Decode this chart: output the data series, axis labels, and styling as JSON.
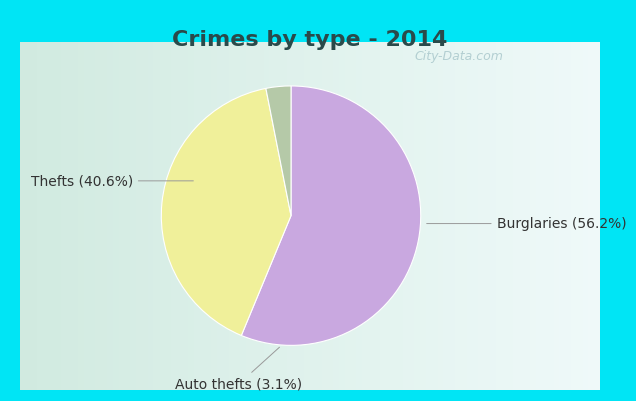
{
  "title": "Crimes by type - 2014",
  "slices": [
    56.2,
    40.6,
    3.1
  ],
  "labels": [
    "Burglaries (56.2%)",
    "Thefts (40.6%)",
    "Auto thefts (3.1%)"
  ],
  "colors": [
    "#c9a8e0",
    "#f0f09a",
    "#b5c9a8"
  ],
  "background_cyan": "#00e5f5",
  "background_inner": "#d8ede5",
  "title_color": "#2a4a4a",
  "title_fontsize": 16,
  "label_fontsize": 10,
  "startangle": 90,
  "watermark": "City-Data.com"
}
